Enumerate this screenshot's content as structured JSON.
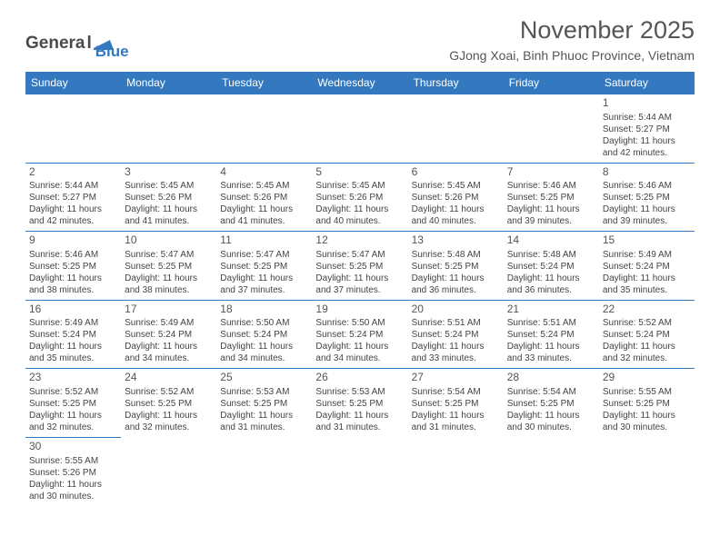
{
  "logo": {
    "general": "Genera",
    "l": "l",
    "blue": "Blue"
  },
  "title": "November 2025",
  "location": "GJong Xoai, Binh Phuoc Province, Vietnam",
  "daysOfWeek": [
    "Sunday",
    "Monday",
    "Tuesday",
    "Wednesday",
    "Thursday",
    "Friday",
    "Saturday"
  ],
  "colors": {
    "headerBg": "#3478c0",
    "headerText": "#ffffff",
    "border": "#3478c0",
    "text": "#444444"
  },
  "weeks": [
    [
      null,
      null,
      null,
      null,
      null,
      null,
      {
        "n": "1",
        "sr": "Sunrise: 5:44 AM",
        "ss": "Sunset: 5:27 PM",
        "d1": "Daylight: 11 hours",
        "d2": "and 42 minutes."
      }
    ],
    [
      {
        "n": "2",
        "sr": "Sunrise: 5:44 AM",
        "ss": "Sunset: 5:27 PM",
        "d1": "Daylight: 11 hours",
        "d2": "and 42 minutes."
      },
      {
        "n": "3",
        "sr": "Sunrise: 5:45 AM",
        "ss": "Sunset: 5:26 PM",
        "d1": "Daylight: 11 hours",
        "d2": "and 41 minutes."
      },
      {
        "n": "4",
        "sr": "Sunrise: 5:45 AM",
        "ss": "Sunset: 5:26 PM",
        "d1": "Daylight: 11 hours",
        "d2": "and 41 minutes."
      },
      {
        "n": "5",
        "sr": "Sunrise: 5:45 AM",
        "ss": "Sunset: 5:26 PM",
        "d1": "Daylight: 11 hours",
        "d2": "and 40 minutes."
      },
      {
        "n": "6",
        "sr": "Sunrise: 5:45 AM",
        "ss": "Sunset: 5:26 PM",
        "d1": "Daylight: 11 hours",
        "d2": "and 40 minutes."
      },
      {
        "n": "7",
        "sr": "Sunrise: 5:46 AM",
        "ss": "Sunset: 5:25 PM",
        "d1": "Daylight: 11 hours",
        "d2": "and 39 minutes."
      },
      {
        "n": "8",
        "sr": "Sunrise: 5:46 AM",
        "ss": "Sunset: 5:25 PM",
        "d1": "Daylight: 11 hours",
        "d2": "and 39 minutes."
      }
    ],
    [
      {
        "n": "9",
        "sr": "Sunrise: 5:46 AM",
        "ss": "Sunset: 5:25 PM",
        "d1": "Daylight: 11 hours",
        "d2": "and 38 minutes."
      },
      {
        "n": "10",
        "sr": "Sunrise: 5:47 AM",
        "ss": "Sunset: 5:25 PM",
        "d1": "Daylight: 11 hours",
        "d2": "and 38 minutes."
      },
      {
        "n": "11",
        "sr": "Sunrise: 5:47 AM",
        "ss": "Sunset: 5:25 PM",
        "d1": "Daylight: 11 hours",
        "d2": "and 37 minutes."
      },
      {
        "n": "12",
        "sr": "Sunrise: 5:47 AM",
        "ss": "Sunset: 5:25 PM",
        "d1": "Daylight: 11 hours",
        "d2": "and 37 minutes."
      },
      {
        "n": "13",
        "sr": "Sunrise: 5:48 AM",
        "ss": "Sunset: 5:25 PM",
        "d1": "Daylight: 11 hours",
        "d2": "and 36 minutes."
      },
      {
        "n": "14",
        "sr": "Sunrise: 5:48 AM",
        "ss": "Sunset: 5:24 PM",
        "d1": "Daylight: 11 hours",
        "d2": "and 36 minutes."
      },
      {
        "n": "15",
        "sr": "Sunrise: 5:49 AM",
        "ss": "Sunset: 5:24 PM",
        "d1": "Daylight: 11 hours",
        "d2": "and 35 minutes."
      }
    ],
    [
      {
        "n": "16",
        "sr": "Sunrise: 5:49 AM",
        "ss": "Sunset: 5:24 PM",
        "d1": "Daylight: 11 hours",
        "d2": "and 35 minutes."
      },
      {
        "n": "17",
        "sr": "Sunrise: 5:49 AM",
        "ss": "Sunset: 5:24 PM",
        "d1": "Daylight: 11 hours",
        "d2": "and 34 minutes."
      },
      {
        "n": "18",
        "sr": "Sunrise: 5:50 AM",
        "ss": "Sunset: 5:24 PM",
        "d1": "Daylight: 11 hours",
        "d2": "and 34 minutes."
      },
      {
        "n": "19",
        "sr": "Sunrise: 5:50 AM",
        "ss": "Sunset: 5:24 PM",
        "d1": "Daylight: 11 hours",
        "d2": "and 34 minutes."
      },
      {
        "n": "20",
        "sr": "Sunrise: 5:51 AM",
        "ss": "Sunset: 5:24 PM",
        "d1": "Daylight: 11 hours",
        "d2": "and 33 minutes."
      },
      {
        "n": "21",
        "sr": "Sunrise: 5:51 AM",
        "ss": "Sunset: 5:24 PM",
        "d1": "Daylight: 11 hours",
        "d2": "and 33 minutes."
      },
      {
        "n": "22",
        "sr": "Sunrise: 5:52 AM",
        "ss": "Sunset: 5:24 PM",
        "d1": "Daylight: 11 hours",
        "d2": "and 32 minutes."
      }
    ],
    [
      {
        "n": "23",
        "sr": "Sunrise: 5:52 AM",
        "ss": "Sunset: 5:25 PM",
        "d1": "Daylight: 11 hours",
        "d2": "and 32 minutes."
      },
      {
        "n": "24",
        "sr": "Sunrise: 5:52 AM",
        "ss": "Sunset: 5:25 PM",
        "d1": "Daylight: 11 hours",
        "d2": "and 32 minutes."
      },
      {
        "n": "25",
        "sr": "Sunrise: 5:53 AM",
        "ss": "Sunset: 5:25 PM",
        "d1": "Daylight: 11 hours",
        "d2": "and 31 minutes."
      },
      {
        "n": "26",
        "sr": "Sunrise: 5:53 AM",
        "ss": "Sunset: 5:25 PM",
        "d1": "Daylight: 11 hours",
        "d2": "and 31 minutes."
      },
      {
        "n": "27",
        "sr": "Sunrise: 5:54 AM",
        "ss": "Sunset: 5:25 PM",
        "d1": "Daylight: 11 hours",
        "d2": "and 31 minutes."
      },
      {
        "n": "28",
        "sr": "Sunrise: 5:54 AM",
        "ss": "Sunset: 5:25 PM",
        "d1": "Daylight: 11 hours",
        "d2": "and 30 minutes."
      },
      {
        "n": "29",
        "sr": "Sunrise: 5:55 AM",
        "ss": "Sunset: 5:25 PM",
        "d1": "Daylight: 11 hours",
        "d2": "and 30 minutes."
      }
    ],
    [
      {
        "n": "30",
        "sr": "Sunrise: 5:55 AM",
        "ss": "Sunset: 5:26 PM",
        "d1": "Daylight: 11 hours",
        "d2": "and 30 minutes."
      },
      null,
      null,
      null,
      null,
      null,
      null
    ]
  ]
}
